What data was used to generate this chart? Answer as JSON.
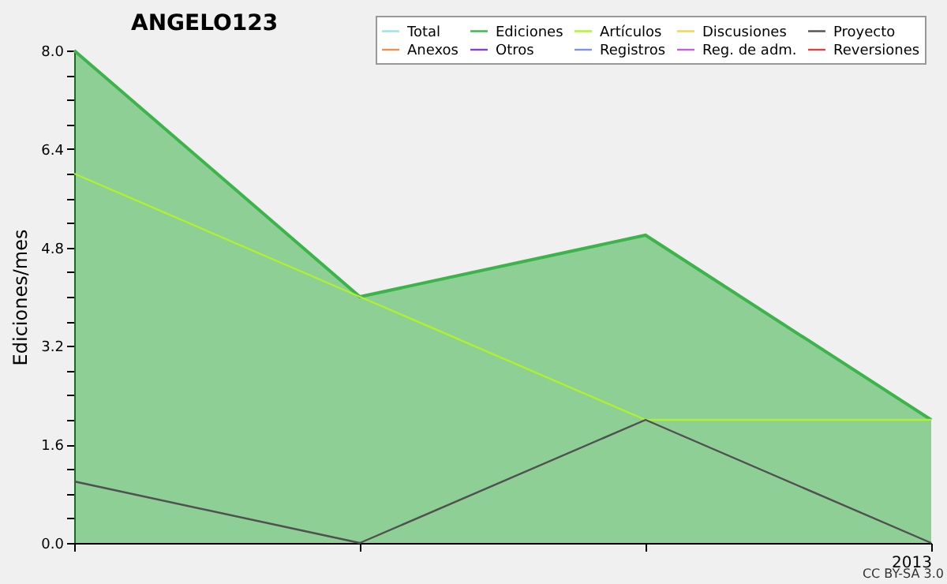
{
  "chart_data": {
    "type": "line",
    "title": "ANGELO123",
    "ylabel": "Ediciones/mes",
    "annotations": [
      "CC BY-SA 3.0"
    ],
    "categories": [
      null,
      null,
      null,
      "2013"
    ],
    "series": [
      {
        "name": "Total",
        "color": "#a0e0e0",
        "values": [
          null,
          null,
          null,
          null
        ]
      },
      {
        "name": "Ediciones",
        "type": "area",
        "color": "#3cb44b",
        "values": [
          8,
          4,
          5,
          2
        ]
      },
      {
        "name": "Artículos",
        "color": "#b0f030",
        "values": [
          6,
          4,
          2,
          2
        ]
      },
      {
        "name": "Discusiones",
        "color": "#f0d060",
        "values": [
          null,
          null,
          null,
          null
        ]
      },
      {
        "name": "Proyecto",
        "color": "#505050",
        "values": [
          1,
          0,
          2,
          0
        ]
      },
      {
        "name": "Anexos",
        "color": "#f09050",
        "values": [
          null,
          null,
          null,
          null
        ]
      },
      {
        "name": "Otros",
        "color": "#8040d0",
        "values": [
          null,
          null,
          null,
          null
        ]
      },
      {
        "name": "Registros",
        "color": "#8090f0",
        "values": [
          null,
          null,
          null,
          null
        ]
      },
      {
        "name": "Reg. de adm.",
        "color": "#c060e0",
        "values": [
          null,
          null,
          null,
          null
        ]
      },
      {
        "name": "Reversiones",
        "color": "#e04040",
        "values": [
          null,
          null,
          null,
          null
        ]
      }
    ],
    "ylim": [
      0,
      8
    ],
    "yticks": [
      {
        "value": 0,
        "label": "0.0"
      },
      {
        "value": 0.4,
        "label": null
      },
      {
        "value": 0.8,
        "label": null
      },
      {
        "value": 1.2,
        "label": null
      },
      {
        "value": 1.6,
        "label": "1.6"
      },
      {
        "value": 2.0,
        "label": null
      },
      {
        "value": 2.4,
        "label": null
      },
      {
        "value": 2.8,
        "label": null
      },
      {
        "value": 3.2,
        "label": "3.2"
      },
      {
        "value": 3.6,
        "label": null
      },
      {
        "value": 4.0,
        "label": null
      },
      {
        "value": 4.4,
        "label": null
      },
      {
        "value": 4.8,
        "label": "4.8"
      },
      {
        "value": 5.2,
        "label": null
      },
      {
        "value": 5.6,
        "label": null
      },
      {
        "value": 6.0,
        "label": null
      },
      {
        "value": 6.4,
        "label": "6.4"
      },
      {
        "value": 6.8,
        "label": null
      },
      {
        "value": 7.2,
        "label": null
      },
      {
        "value": 7.6,
        "label": null
      },
      {
        "value": 8.0,
        "label": "8.0"
      }
    ],
    "legend": "top right"
  }
}
